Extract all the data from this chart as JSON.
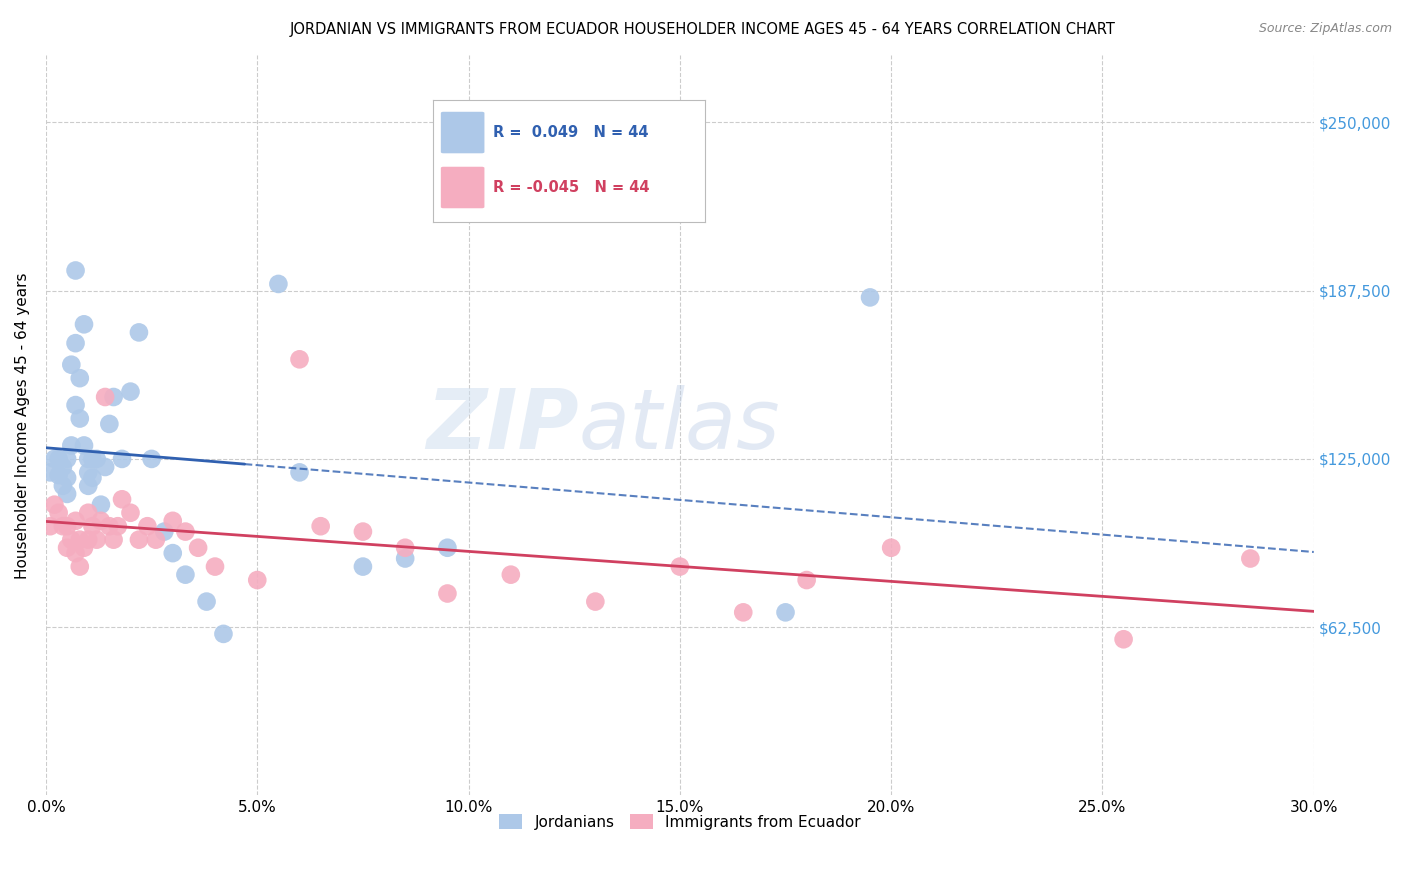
{
  "title": "JORDANIAN VS IMMIGRANTS FROM ECUADOR HOUSEHOLDER INCOME AGES 45 - 64 YEARS CORRELATION CHART",
  "source": "Source: ZipAtlas.com",
  "ylabel": "Householder Income Ages 45 - 64 years",
  "xlim": [
    0.0,
    0.3
  ],
  "ylim": [
    0,
    275000
  ],
  "xtick_labels": [
    "0.0%",
    "5.0%",
    "10.0%",
    "15.0%",
    "20.0%",
    "25.0%",
    "30.0%"
  ],
  "xtick_values": [
    0.0,
    0.05,
    0.1,
    0.15,
    0.2,
    0.25,
    0.3
  ],
  "ytick_values": [
    62500,
    125000,
    187500,
    250000
  ],
  "jordanian_color": "#adc8e8",
  "ecuador_color": "#f5adc0",
  "jordanian_line_color": "#3060b0",
  "ecuador_line_color": "#d04060",
  "jordanian_R": 0.049,
  "jordanian_N": 44,
  "ecuador_R": -0.045,
  "ecuador_N": 44,
  "watermark": "ZIPatlas",
  "background_color": "#ffffff",
  "grid_color": "#cccccc",
  "right_label_color": "#4499dd",
  "jordanian_x": [
    0.001,
    0.002,
    0.003,
    0.003,
    0.004,
    0.004,
    0.005,
    0.005,
    0.005,
    0.006,
    0.006,
    0.007,
    0.007,
    0.007,
    0.008,
    0.008,
    0.009,
    0.009,
    0.01,
    0.01,
    0.01,
    0.011,
    0.011,
    0.012,
    0.013,
    0.014,
    0.015,
    0.016,
    0.018,
    0.02,
    0.022,
    0.025,
    0.028,
    0.03,
    0.033,
    0.038,
    0.042,
    0.055,
    0.06,
    0.075,
    0.085,
    0.095,
    0.175,
    0.195
  ],
  "jordanian_y": [
    120000,
    125000,
    125000,
    119000,
    122000,
    115000,
    125000,
    118000,
    112000,
    130000,
    160000,
    168000,
    195000,
    145000,
    140000,
    155000,
    130000,
    175000,
    125000,
    120000,
    115000,
    125000,
    118000,
    125000,
    108000,
    122000,
    138000,
    148000,
    125000,
    150000,
    172000,
    125000,
    98000,
    90000,
    82000,
    72000,
    60000,
    190000,
    120000,
    85000,
    88000,
    92000,
    68000,
    185000
  ],
  "ecuador_x": [
    0.001,
    0.002,
    0.003,
    0.004,
    0.005,
    0.005,
    0.006,
    0.007,
    0.007,
    0.008,
    0.008,
    0.009,
    0.01,
    0.01,
    0.011,
    0.012,
    0.013,
    0.014,
    0.015,
    0.016,
    0.017,
    0.018,
    0.02,
    0.022,
    0.024,
    0.026,
    0.03,
    0.033,
    0.036,
    0.04,
    0.05,
    0.06,
    0.065,
    0.075,
    0.085,
    0.095,
    0.11,
    0.13,
    0.15,
    0.165,
    0.18,
    0.2,
    0.255,
    0.285
  ],
  "ecuador_y": [
    100000,
    108000,
    105000,
    100000,
    100000,
    92000,
    95000,
    102000,
    90000,
    95000,
    85000,
    92000,
    105000,
    95000,
    100000,
    95000,
    102000,
    148000,
    100000,
    95000,
    100000,
    110000,
    105000,
    95000,
    100000,
    95000,
    102000,
    98000,
    92000,
    85000,
    80000,
    162000,
    100000,
    98000,
    92000,
    75000,
    82000,
    72000,
    85000,
    68000,
    80000,
    92000,
    58000,
    88000
  ]
}
